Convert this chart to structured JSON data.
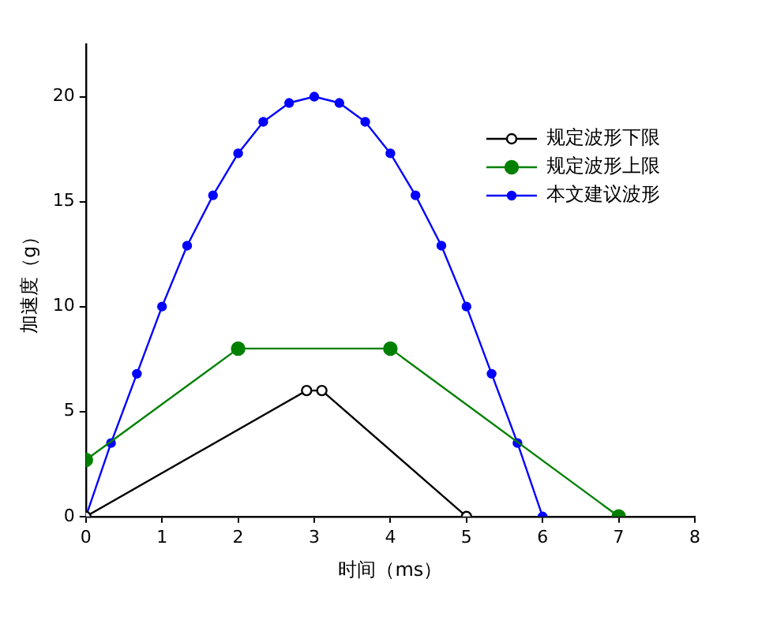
{
  "chart_data": {
    "type": "line",
    "xlabel": "时间（ms）",
    "ylabel": "加速度（g）",
    "xlim": [
      0,
      8
    ],
    "xticks": [
      0,
      1,
      2,
      3,
      4,
      5,
      6,
      7,
      8
    ],
    "ylim": [
      0,
      22.5
    ],
    "yticks": [
      0,
      5,
      10,
      15,
      20
    ],
    "grid": false,
    "legend": "top right",
    "marker": "circle",
    "line_style": "solid",
    "series": [
      {
        "name": "规定波形下限",
        "color": "#000000",
        "x": [
          0,
          2.9,
          3.1,
          5
        ],
        "values": [
          0,
          6,
          6,
          0
        ]
      },
      {
        "name": "规定波形上限",
        "color": "#008000",
        "x": [
          0,
          2,
          4,
          7
        ],
        "values": [
          2.7,
          8,
          8,
          0
        ]
      },
      {
        "name": "本文建议波形",
        "color": "#0000ff",
        "x": [
          0,
          0.33,
          0.67,
          1,
          1.33,
          1.67,
          2,
          2.33,
          2.67,
          3,
          3.33,
          3.67,
          4,
          4.33,
          4.67,
          5,
          5.33,
          5.67,
          6
        ],
        "values": [
          0,
          3.5,
          6.8,
          10,
          12.9,
          15.3,
          17.3,
          18.8,
          19.7,
          20,
          19.7,
          18.8,
          17.3,
          15.3,
          12.9,
          10,
          6.8,
          3.5,
          0
        ]
      }
    ]
  }
}
